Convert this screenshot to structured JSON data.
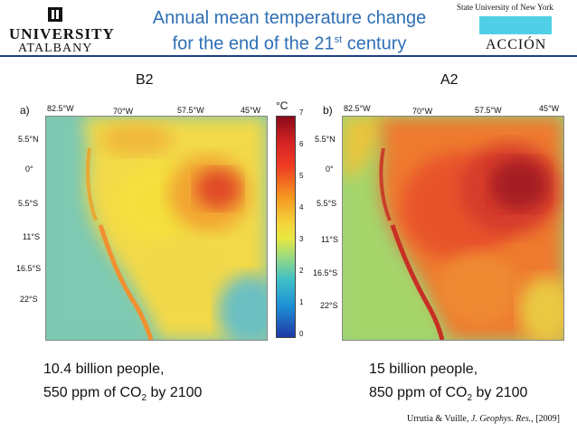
{
  "header": {
    "logo_line1": "UNIVERSITY",
    "logo_line2": "ATALBANY",
    "title_line1": "Annual mean temperature change",
    "title_line2_pre": "for the end of the 21",
    "title_line2_sup": "st",
    "title_line2_post": " century",
    "suny": "State University of New York",
    "accion": "ACCIÓN",
    "accent_color": "#2e6fb5",
    "rule_color": "#1b3f86"
  },
  "left_panel": {
    "scenario": "B2",
    "letter": "a)",
    "lon_ticks": [
      "82.5°W",
      "70°W",
      "57.5°W",
      "45°W"
    ],
    "lat_ticks": [
      "5.5°N",
      "0°",
      "5.5°S",
      "11°S",
      "16.5°S",
      "22°S"
    ],
    "caption_line1": "10.4 billion people,",
    "caption_line2_pre": "550 ppm of CO",
    "caption_line2_sub": "2",
    "caption_line2_post": " by 2100"
  },
  "right_panel": {
    "scenario": "A2",
    "letter": "b)",
    "lon_ticks": [
      "82.5°W",
      "70°W",
      "57.5°W",
      "45°W"
    ],
    "lat_ticks": [
      "5.5°N",
      "0°",
      "5.5°S",
      "11°S",
      "16.5°S",
      "22°S"
    ],
    "caption_line1": "15 billion people,",
    "caption_line2_pre": "850 ppm of CO",
    "caption_line2_sub": "2",
    "caption_line2_post": " by 2100"
  },
  "colorbar": {
    "unit": "°C",
    "labels": [
      "7",
      "6",
      "5",
      "4",
      "3",
      "2",
      "1",
      "0"
    ]
  },
  "citation": {
    "authors": "Urrutia & Vuille,",
    "journal": "J. Geophys. Res.",
    "year": ", [2009]"
  }
}
